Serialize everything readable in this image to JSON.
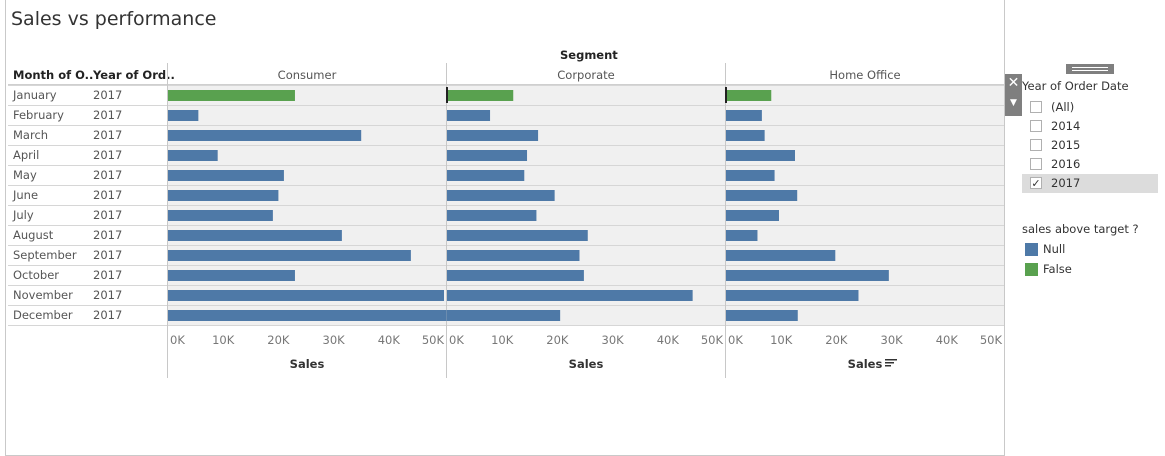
{
  "title": "Sales vs performance",
  "headers": {
    "segment_label": "Segment",
    "month_col": "Month of O..",
    "year_col": "Year of Ord.."
  },
  "colors": {
    "Null": "#4e79a7",
    "False": "#59a14f"
  },
  "chart_data": {
    "type": "bar",
    "orientation": "horizontal",
    "categories": [
      "January",
      "February",
      "March",
      "April",
      "May",
      "June",
      "July",
      "August",
      "September",
      "October",
      "November",
      "December"
    ],
    "row_year": "2017",
    "panels": [
      {
        "segment": "Consumer",
        "values": [
          23000,
          5500,
          35000,
          9000,
          21000,
          20000,
          19000,
          31500,
          44000,
          23000,
          50000,
          50500
        ],
        "colors": [
          "False",
          "Null",
          "Null",
          "Null",
          "Null",
          "Null",
          "Null",
          "Null",
          "Null",
          "Null",
          "Null",
          "Null"
        ]
      },
      {
        "segment": "Corporate",
        "values": [
          12000,
          7800,
          16500,
          14500,
          14000,
          19500,
          16200,
          25500,
          24000,
          24800,
          44500,
          20500
        ],
        "colors": [
          "False",
          "Null",
          "Null",
          "Null",
          "Null",
          "Null",
          "Null",
          "Null",
          "Null",
          "Null",
          "Null",
          "Null"
        ]
      },
      {
        "segment": "Home Office",
        "values": [
          8200,
          6500,
          7000,
          12500,
          8800,
          12900,
          9600,
          5700,
          19800,
          29500,
          24000,
          13000
        ],
        "colors": [
          "False",
          "Null",
          "Null",
          "Null",
          "Null",
          "Null",
          "Null",
          "Null",
          "Null",
          "Null",
          "Null",
          "Null"
        ]
      }
    ],
    "xlim": [
      0,
      50000
    ],
    "xticks": [
      0,
      10000,
      20000,
      30000,
      40000,
      50000
    ],
    "xtick_labels": [
      "0K",
      "10K",
      "20K",
      "30K",
      "40K",
      "50K"
    ],
    "xlabel": "Sales",
    "legend": {
      "title": "sales above target ?",
      "entries": [
        "Null",
        "False"
      ],
      "placement": "right"
    },
    "grid": false
  },
  "filter": {
    "title": "Year of Order Date",
    "items": [
      {
        "label": "(All)",
        "checked": false
      },
      {
        "label": "2014",
        "checked": false
      },
      {
        "label": "2015",
        "checked": false
      },
      {
        "label": "2016",
        "checked": false
      },
      {
        "label": "2017",
        "checked": true
      }
    ],
    "close_icon": "close-icon",
    "dropdown_icon": "dropdown-arrow-icon"
  },
  "sort_icon": "sort-icon"
}
